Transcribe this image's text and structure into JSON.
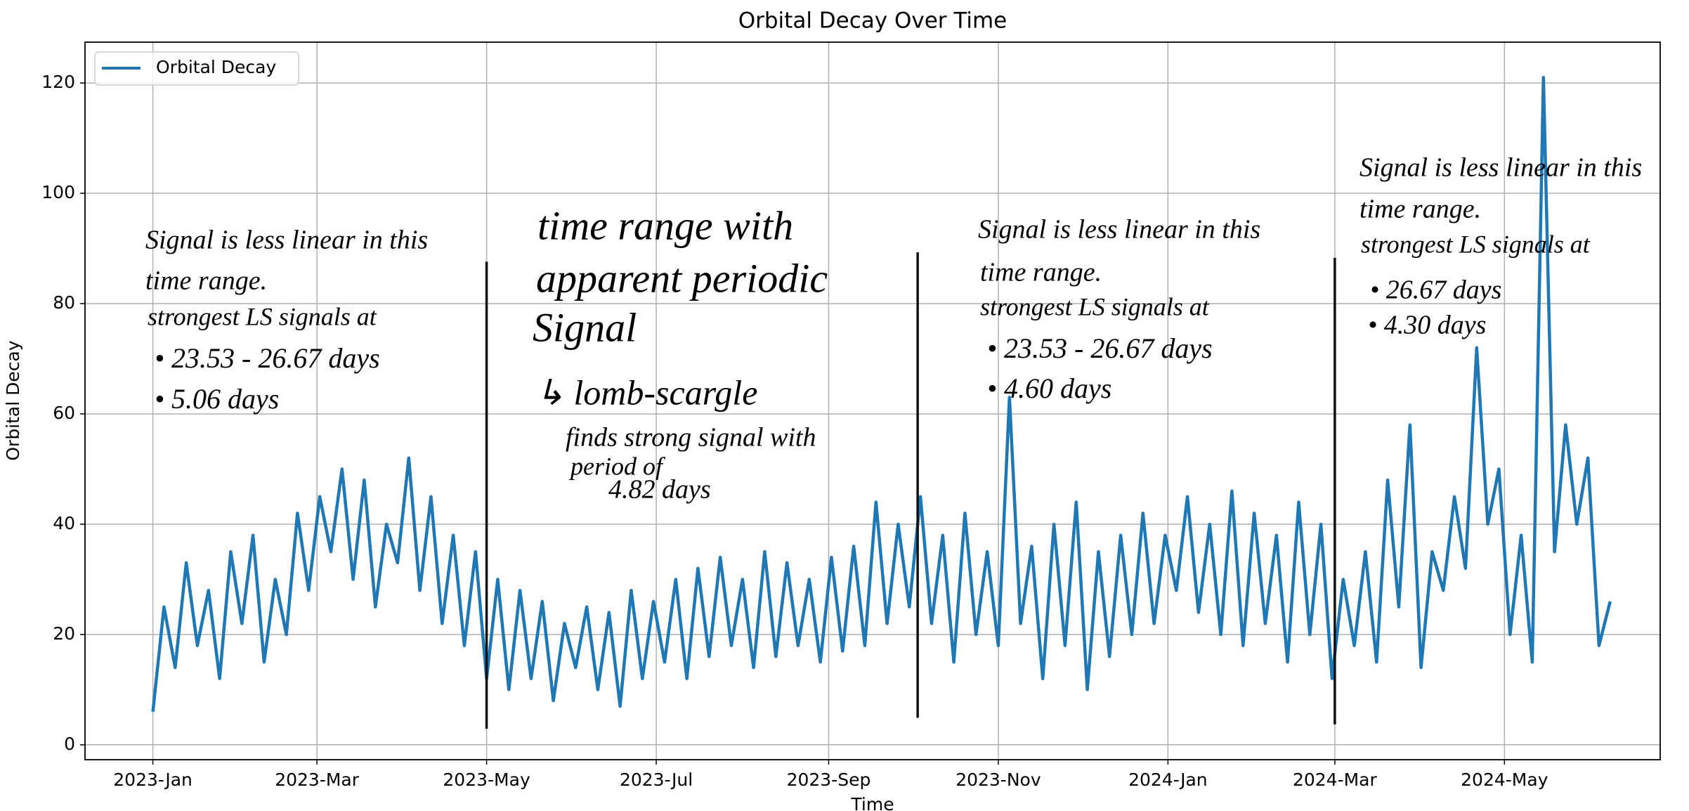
{
  "chart_data": {
    "type": "line",
    "title": "Orbital Decay Over Time",
    "x_label": "Time",
    "y_label": "Orbital Decay",
    "x": [
      0,
      4,
      8,
      12,
      16,
      20,
      24,
      28,
      32,
      36,
      40,
      44,
      48,
      52,
      56,
      60,
      64,
      68,
      72,
      76,
      80,
      84,
      88,
      92,
      96,
      100,
      104,
      108,
      112,
      116,
      120,
      124,
      128,
      132,
      136,
      140,
      144,
      148,
      152,
      156,
      160,
      164,
      168,
      172,
      176,
      180,
      184,
      188,
      192,
      196,
      200,
      204,
      208,
      212,
      216,
      220,
      224,
      228,
      232,
      236,
      240,
      244,
      248,
      252,
      256,
      260,
      264,
      268,
      272,
      276,
      280,
      284,
      288,
      292,
      296,
      300,
      304,
      308,
      312,
      316,
      320,
      324,
      328,
      332,
      336,
      340,
      344,
      348,
      352,
      356,
      360,
      364,
      368,
      372,
      376,
      380,
      384,
      388,
      392,
      396,
      400,
      404,
      408,
      412,
      416,
      420,
      424,
      428,
      432,
      436,
      440,
      444,
      448,
      452,
      456,
      460,
      464,
      468,
      472,
      476,
      480,
      484,
      488,
      492,
      496,
      500,
      504,
      508,
      512,
      516,
      520,
      524
    ],
    "series": [
      {
        "name": "Orbital Decay",
        "color": "#1f77b4",
        "values": [
          6,
          25,
          14,
          33,
          18,
          28,
          12,
          35,
          22,
          38,
          15,
          30,
          20,
          42,
          28,
          45,
          35,
          50,
          30,
          48,
          25,
          40,
          33,
          52,
          28,
          45,
          22,
          38,
          18,
          35,
          12,
          30,
          10,
          28,
          12,
          26,
          8,
          22,
          14,
          25,
          10,
          24,
          7,
          28,
          12,
          26,
          15,
          30,
          12,
          32,
          16,
          34,
          18,
          30,
          14,
          35,
          16,
          33,
          18,
          30,
          15,
          34,
          17,
          36,
          18,
          44,
          22,
          40,
          25,
          45,
          22,
          38,
          15,
          42,
          20,
          35,
          18,
          63,
          22,
          36,
          12,
          40,
          18,
          44,
          10,
          35,
          16,
          38,
          20,
          42,
          22,
          38,
          28,
          45,
          24,
          40,
          20,
          46,
          18,
          42,
          22,
          38,
          15,
          44,
          20,
          40,
          12,
          30,
          18,
          35,
          15,
          48,
          25,
          58,
          14,
          35,
          28,
          45,
          32,
          72,
          40,
          50,
          20,
          38,
          15,
          121,
          35,
          58,
          40,
          52,
          18,
          26
        ]
      }
    ],
    "xlim": [
      -24.4,
      542
    ],
    "ylim": [
      -2.7,
      127.4
    ],
    "xticks": [
      {
        "value": 0,
        "label": "2023-Jan"
      },
      {
        "value": 59,
        "label": "2023-Mar"
      },
      {
        "value": 120,
        "label": "2023-May"
      },
      {
        "value": 181,
        "label": "2023-Jul"
      },
      {
        "value": 243,
        "label": "2023-Sep"
      },
      {
        "value": 304,
        "label": "2023-Nov"
      },
      {
        "value": 365,
        "label": "2024-Jan"
      },
      {
        "value": 425,
        "label": "2024-Mar"
      },
      {
        "value": 486,
        "label": "2024-May"
      }
    ],
    "yticks": [
      0,
      20,
      40,
      60,
      80,
      100,
      120
    ],
    "grid": true,
    "legend": "upper left",
    "vlines": [
      {
        "x": 120,
        "y_range": [
          2.9,
          87.6
        ]
      },
      {
        "x": 275,
        "y_range": [
          4.9,
          89.3
        ]
      },
      {
        "x": 425,
        "y_range": [
          3.7,
          88.3
        ]
      }
    ],
    "annotations": [
      {
        "lines": [
          "Signal is less linear in this",
          "time range.",
          "strongest LS signals at",
          "• 23.53 - 26.67 days",
          "• 5.06 days"
        ]
      },
      {
        "lines": [
          "time range with",
          "apparent periodic",
          "Signal",
          "↳ lomb-scargle",
          "finds strong signal with",
          "period of",
          "4.82 days"
        ]
      },
      {
        "lines": [
          "Signal is less linear in this",
          "time range.",
          "strongest LS signals at",
          "• 23.53 - 26.67 days",
          "• 4.60 days"
        ]
      },
      {
        "lines": [
          "Signal is less linear in this",
          "time range.",
          "strongest LS signals at",
          "• 26.67 days",
          "• 4.30 days"
        ]
      }
    ]
  }
}
